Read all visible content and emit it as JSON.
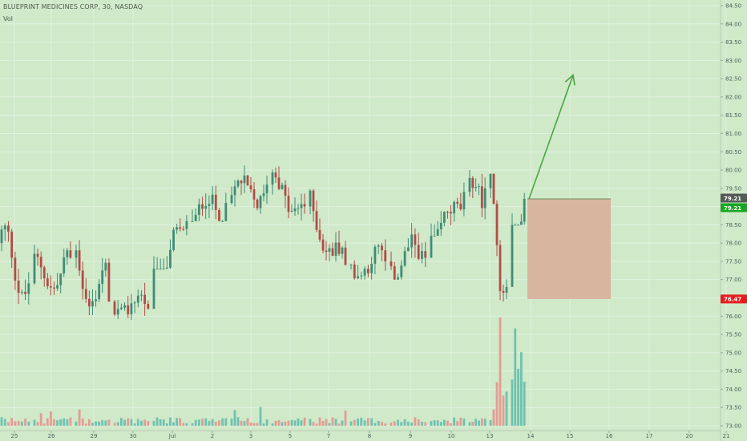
{
  "header": {
    "title": "BLUEPRINT MEDICINES CORP, 30, NASDAQ",
    "volume_label": "Vol"
  },
  "colors": {
    "background": "#cfe9c9",
    "grid": "#e3f1df",
    "up_candle": "#3f8c76",
    "down_candle": "#b14c46",
    "vol_up": "#6fc2b0",
    "vol_down": "#e69b93",
    "arrow": "#49a63f",
    "risk_box": "#d8b59f",
    "axis_text": "#55605a",
    "price_tag_dark": "#535b57",
    "price_tag_green": "#17a823",
    "price_tag_red": "#e71d1d"
  },
  "chart_data": {
    "type": "candlestick",
    "title": "BLUEPRINT MEDICINES CORP, 30, NASDAQ",
    "indicators": [
      "Vol"
    ],
    "grid": true,
    "y_ticks": [
      "84.50",
      "84.00",
      "83.50",
      "83.00",
      "82.50",
      "82.00",
      "81.50",
      "81.00",
      "80.50",
      "80.00",
      "79.50",
      "79.00",
      "78.50",
      "78.00",
      "77.50",
      "77.00",
      "76.50",
      "76.00",
      "75.50",
      "75.00",
      "74.50",
      "74.00",
      "73.50",
      "73.00"
    ],
    "ylim": [
      72.7,
      84.65
    ],
    "x_ticks": [
      "25",
      "26",
      "29",
      "30",
      "Jul",
      "2",
      "3",
      "5",
      "7",
      "8",
      "9",
      "10",
      "13",
      "14",
      "15",
      "16",
      "17",
      "20",
      "21",
      "2"
    ],
    "session_closes": [
      76.9,
      77.6,
      76.4,
      76.2,
      78.6,
      79.1,
      79.6,
      79.0,
      77.4,
      77.5,
      77.6,
      79.4,
      79.5,
      76.8,
      79.21
    ],
    "session_highs": [
      79.4,
      79.7,
      79.4,
      77.7,
      79.8,
      80.9,
      81.1,
      80.1,
      79.6,
      78.7,
      79.4,
      80.0,
      80.0,
      79.9,
      81.0
    ],
    "session_lows": [
      75.8,
      76.5,
      74.9,
      75.9,
      77.3,
      78.6,
      78.8,
      77.8,
      77.2,
      77.0,
      77.0,
      78.2,
      78.4,
      75.2,
      78.5
    ],
    "session_peak_volumes": [
      0.22,
      0.2,
      0.3,
      0.22,
      0.25,
      0.22,
      0.28,
      0.22,
      0.2,
      0.22,
      0.2,
      0.2,
      0.3,
      1.0,
      0.78
    ],
    "price_tags": [
      {
        "label": "79.21",
        "style": "dark"
      },
      {
        "label": "79.21",
        "style": "green"
      },
      {
        "label": "76.47",
        "style": "red"
      }
    ],
    "annotations": {
      "target_arrow": {
        "from": {
          "date": "15",
          "price": 79.21
        },
        "to": {
          "date": "16",
          "price": 82.6
        }
      },
      "stop_box": {
        "from_price": 79.21,
        "to_price": 76.47,
        "start": "15",
        "end": "17"
      }
    }
  }
}
